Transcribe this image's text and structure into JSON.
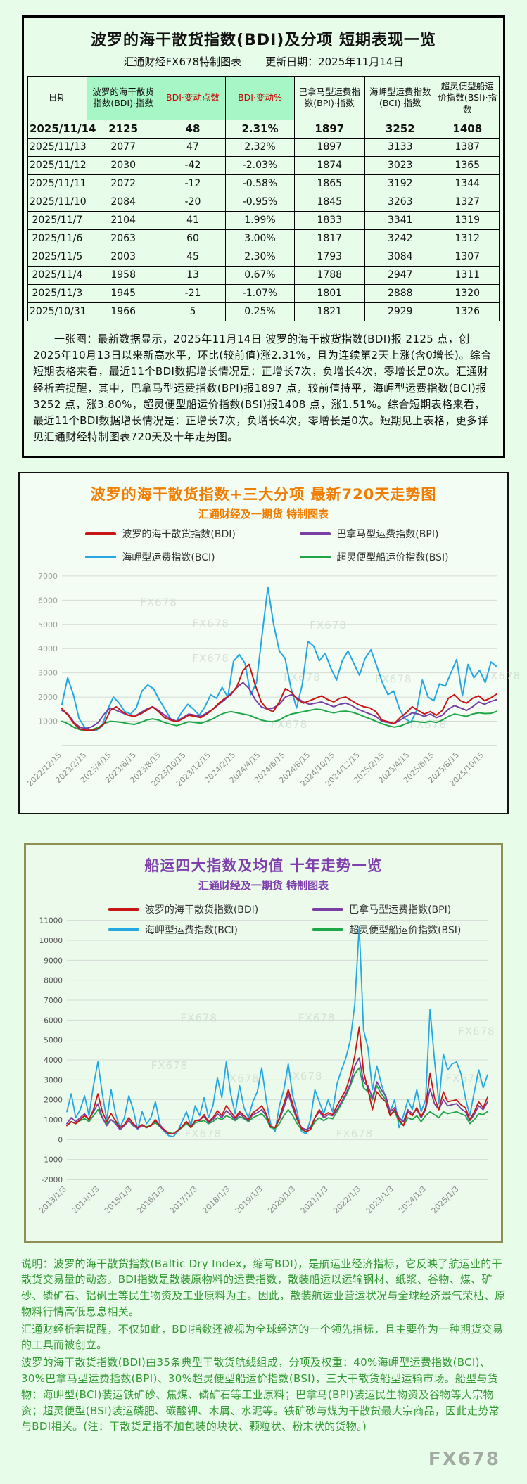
{
  "page": {
    "background": "#e7fce9",
    "footer_logo": "FX678"
  },
  "top_panel": {
    "title": "波罗的海干散货指数(BDI)及分项 短期表现一览",
    "source": "汇通财经FX678特制图表",
    "update_date": "更新日期：2025年11月14日",
    "summary": "一张图：最新数据显示，2025年11月14日 波罗的海干散货指数(BDI)报 2125 点，创2025年10月13日以来新高水平，环比(较前值)涨2.31%，且为连续第2天上涨(含0增长)。综合短期表格来看，最近11个BDI数据增长情况是：正增长7次，负增长4次，零增长是0次。汇通财经析若提醒，其中，巴拿马型运费指数(BPI)报1897 点，较前值持平，海岬型运费指数(BCI)报3252 点，涨3.80%，超灵便型船运价指数(BSI)报1408 点，涨1.51%。综合短期表格来看，最近11个BDI数据增长情况是：正增长7次，负增长4次，零增长是0次。短期见上表格，更多详见汇通财经特制图表720天及十年走势图。"
  },
  "description": {
    "paragraphs": [
      "说明：波罗的海干散货指数(Baltic Dry Index，缩写BDI)，是航运业经济指标，它反映了航运业的干散货交易量的动态。BDI指数是散装原物料的运费指数，散装船运以运输钢材、纸浆、谷物、煤、矿砂、磷矿石、铝矾土等民生物资及工业原料为主。因此，散装航运业营运状况与全球经济景气荣枯、原物料行情高低息息相关。",
      "汇通财经析若提醒，不仅如此，BDI指数还被视为全球经济的一个领先指标，且主要作为一种期货交易的工具而被创立。",
      "波罗的海干散货指数(BDI)由35条典型干散货航线组成，分项及权重：40%海岬型运费指数(BCI)、30%巴拿马型运费指数(BPI)、30%超灵便型船运价指数(BSI)，三大干散货船型运输市场。船型与货物：海岬型(BCI)装运铁矿砂、焦煤、磷矿石等工业原料；巴拿马(BPI)装运民生物资及谷物等大宗物资；超灵便型(BSI)装运磷肥、碳酸钾、木屑、水泥等。铁矿砂与煤为干散货最大宗商品，因此走势常与BDI相关。(注：干散货是指不加包装的块状、颗粒状、粉末状的货物。)"
    ]
  },
  "chart_data": [
    {
      "type": "table",
      "title": "波罗的海干散货指数(BDI)及分项 短期表现一览",
      "columns": [
        "日期",
        "波罗的海干散货指数(BDI)·指数",
        "BDI·变动点数",
        "BDI·变动%",
        "巴拿马型运费指数(BPI)·指数",
        "海岬型运费指数(BCI)·指数",
        "超灵便型船运价指数(BSI)·指数"
      ],
      "rows": [
        [
          "2025/11/14",
          "2125",
          "48",
          "2.31%",
          "1897",
          "3252",
          "1408"
        ],
        [
          "2025/11/13",
          "2077",
          "47",
          "2.32%",
          "1897",
          "3133",
          "1387"
        ],
        [
          "2025/11/12",
          "2030",
          "-42",
          "-2.03%",
          "1874",
          "3023",
          "1365"
        ],
        [
          "2025/11/11",
          "2072",
          "-12",
          "-0.58%",
          "1865",
          "3192",
          "1344"
        ],
        [
          "2025/11/10",
          "2084",
          "-20",
          "-0.95%",
          "1845",
          "3263",
          "1327"
        ],
        [
          "2025/11/7",
          "2104",
          "41",
          "1.99%",
          "1833",
          "3341",
          "1319"
        ],
        [
          "2025/11/6",
          "2063",
          "60",
          "3.00%",
          "1817",
          "3242",
          "1312"
        ],
        [
          "2025/11/5",
          "2003",
          "45",
          "2.30%",
          "1793",
          "3084",
          "1307"
        ],
        [
          "2025/11/4",
          "1958",
          "13",
          "0.67%",
          "1788",
          "2947",
          "1311"
        ],
        [
          "2025/11/3",
          "1945",
          "-21",
          "-1.07%",
          "1801",
          "2888",
          "1320"
        ],
        [
          "2025/10/31",
          "1966",
          "5",
          "0.25%",
          "1821",
          "2929",
          "1326"
        ]
      ]
    },
    {
      "type": "line",
      "title": "波罗的海干散货指数+三大分项  最新720天走势图",
      "subtitle": "汇通财经及一期货 特制图表",
      "watermark": "FX678",
      "grid": "horizontal",
      "legend_position": "top",
      "ylim": [
        0,
        7200
      ],
      "yticks": [
        7000,
        6000,
        5000,
        4000,
        3000,
        2000,
        1000
      ],
      "tick_span": 17.5,
      "categories": [
        "2022/12/15",
        "2023/2/15",
        "2023/4/15",
        "2023/6/15",
        "2023/8/15",
        "2023/10/15",
        "2023/12/15",
        "2024/2/15",
        "2024/4/15",
        "2024/6/15",
        "2024/8/15",
        "2024/10/15",
        "2024/12/15",
        "2025/2/15",
        "2025/4/15",
        "2025/6/15",
        "2025/8/15",
        "2025/10/15"
      ],
      "watermarks": [
        [
          0.18,
          0.2
        ],
        [
          0.3,
          0.32
        ],
        [
          0.57,
          0.33
        ],
        [
          0.3,
          0.52
        ],
        [
          0.51,
          0.63
        ],
        [
          0.72,
          0.64
        ],
        [
          0.97,
          0.62
        ],
        [
          0.48,
          0.9
        ],
        [
          0.8,
          0.9
        ]
      ],
      "draw_order": [
        2,
        3,
        1,
        0
      ],
      "series": [
        {
          "name": "波罗的海干散货指数(BDI)",
          "color": "#c81616",
          "values": [
            1520,
            1250,
            900,
            680,
            640,
            620,
            700,
            900,
            1450,
            1600,
            1400,
            1250,
            1200,
            1300,
            1450,
            1600,
            1400,
            1150,
            1050,
            980,
            1100,
            1250,
            1200,
            1150,
            1300,
            1500,
            1750,
            1950,
            2100,
            2450,
            3100,
            3350,
            2500,
            1800,
            1500,
            1400,
            1800,
            2350,
            2200,
            1900,
            1750,
            1850,
            1950,
            2050,
            1900,
            1800,
            1950,
            2000,
            1850,
            1700,
            1600,
            1550,
            1400,
            1050,
            980,
            900,
            1150,
            1350,
            1600,
            1450,
            1300,
            1400,
            1250,
            1450,
            1950,
            2100,
            1850,
            1750,
            1950,
            2050,
            1850,
            1966,
            2125
          ]
        },
        {
          "name": "巴拿马型运费指数(BPI)",
          "color": "#7a3fa5",
          "values": [
            1450,
            1300,
            950,
            750,
            700,
            780,
            950,
            1300,
            1550,
            1450,
            1350,
            1250,
            1200,
            1350,
            1500,
            1600,
            1450,
            1250,
            1100,
            1000,
            1150,
            1300,
            1250,
            1200,
            1350,
            1500,
            1700,
            1900,
            2150,
            2400,
            2600,
            2350,
            1900,
            1600,
            1500,
            1550,
            1700,
            2000,
            2100,
            1950,
            1800,
            1700,
            1750,
            1800,
            1700,
            1600,
            1700,
            1750,
            1650,
            1500,
            1400,
            1300,
            1200,
            1000,
            950,
            900,
            1050,
            1200,
            1350,
            1300,
            1200,
            1300,
            1150,
            1250,
            1500,
            1650,
            1550,
            1450,
            1600,
            1800,
            1700,
            1821,
            1897
          ]
        },
        {
          "name": "海岬型运费指数(BCI)",
          "color": "#25a8e2",
          "values": [
            1700,
            2800,
            2100,
            1100,
            750,
            650,
            620,
            800,
            1500,
            2000,
            1750,
            1400,
            1300,
            1550,
            2250,
            2500,
            2350,
            1900,
            1500,
            1100,
            1000,
            1400,
            1700,
            1500,
            1250,
            1600,
            2100,
            1950,
            2400,
            2000,
            3480,
            3750,
            3400,
            2100,
            2600,
            4600,
            6540,
            5000,
            3900,
            3600,
            2400,
            1550,
            2500,
            4300,
            4100,
            3500,
            3800,
            3200,
            2700,
            3500,
            3900,
            3400,
            2900,
            3600,
            3950,
            3300,
            2600,
            2100,
            2250,
            1500,
            1100,
            960,
            1450,
            2700,
            2000,
            1850,
            2550,
            2450,
            3000,
            3550,
            2050,
            3350,
            2800,
            3100,
            2600,
            3450,
            3252
          ]
        },
        {
          "name": "超灵便型船运价指数(BSI)",
          "color": "#1fa649",
          "values": [
            1000,
            900,
            750,
            650,
            620,
            650,
            750,
            900,
            1000,
            980,
            950,
            900,
            870,
            950,
            1050,
            1100,
            1050,
            950,
            880,
            820,
            900,
            980,
            950,
            920,
            1000,
            1100,
            1250,
            1350,
            1400,
            1350,
            1300,
            1250,
            1150,
            1050,
            1000,
            980,
            1050,
            1200,
            1300,
            1350,
            1400,
            1450,
            1500,
            1480,
            1400,
            1350,
            1400,
            1420,
            1380,
            1300,
            1200,
            1100,
            1000,
            900,
            820,
            760,
            800,
            900,
            1000,
            980,
            950,
            1000,
            950,
            1050,
            1200,
            1300,
            1250,
            1200,
            1300,
            1350,
            1320,
            1326,
            1408
          ]
        }
      ]
    },
    {
      "type": "line",
      "title": "船运四大指数及均值 十年走势一览",
      "subtitle": "汇通财经及一期货 特制图表",
      "watermark": "FX678",
      "grid": "horizontal",
      "legend_position": "top-inside",
      "ylim": [
        -2000,
        11200
      ],
      "yticks": [
        11000,
        10000,
        9000,
        8000,
        7000,
        6000,
        5000,
        4000,
        3000,
        2000,
        1000,
        0,
        -1000,
        -2000
      ],
      "tick_span": 12.87,
      "categories": [
        "2013/1/3",
        "2014/1/3",
        "2015/1/3",
        "2016/1/3",
        "2017/1/3",
        "2018/1/3",
        "2019/1/3",
        "2020/1/3",
        "2021/1/3",
        "2022/1/3",
        "2023/1/3",
        "2024/1/3",
        "2025/1/3"
      ],
      "watermarks": [
        [
          0.27,
          0.4
        ],
        [
          0.55,
          0.4
        ],
        [
          0.2,
          0.58
        ],
        [
          0.37,
          0.63
        ],
        [
          0.52,
          0.62
        ],
        [
          0.93,
          0.45
        ],
        [
          0.9,
          0.63
        ],
        [
          0.64,
          0.84
        ],
        [
          0.28,
          0.84
        ]
      ],
      "draw_order": [
        2,
        3,
        1,
        0
      ],
      "series": [
        {
          "name": "波罗的海干散货指数(BDI)",
          "color": "#c81616",
          "values": [
            700,
            900,
            800,
            1000,
            1200,
            1000,
            1500,
            2300,
            1400,
            900,
            1300,
            950,
            600,
            750,
            1100,
            800,
            600,
            750,
            600,
            700,
            1000,
            700,
            500,
            300,
            290,
            450,
            650,
            900,
            600,
            950,
            960,
            1250,
            900,
            1100,
            1450,
            1200,
            1700,
            1400,
            1100,
            1400,
            1200,
            1000,
            1350,
            1500,
            1700,
            1300,
            650,
            600,
            1100,
            1800,
            2500,
            1800,
            1100,
            550,
            400,
            500,
            1100,
            1500,
            1200,
            1350,
            1250,
            1700,
            2100,
            2500,
            3200,
            4200,
            5650,
            3400,
            2500,
            1500,
            2400,
            2100,
            1900,
            1200,
            1500,
            1000,
            700,
            1400,
            1200,
            1600,
            1150,
            1600,
            3340,
            2100,
            1500,
            2400,
            1900,
            1950,
            2000,
            1750,
            1600,
            1000,
            1400,
            1900,
            1600,
            2125
          ]
        },
        {
          "name": "巴拿马型运费指数(BPI)",
          "color": "#7a3fa5",
          "values": [
            800,
            1100,
            900,
            1100,
            1300,
            1000,
            1400,
            1800,
            1100,
            700,
            1000,
            800,
            500,
            700,
            950,
            700,
            550,
            700,
            600,
            700,
            950,
            650,
            450,
            300,
            290,
            450,
            650,
            900,
            650,
            950,
            1000,
            1150,
            850,
            1000,
            1300,
            1100,
            1450,
            1250,
            1000,
            1300,
            1100,
            950,
            1250,
            1350,
            1500,
            1200,
            650,
            600,
            1000,
            1600,
            2300,
            1600,
            1000,
            600,
            500,
            600,
            1100,
            1400,
            1100,
            1250,
            1200,
            1500,
            1900,
            2300,
            2800,
            3700,
            4100,
            2900,
            2700,
            2100,
            2900,
            2500,
            2200,
            1400,
            1600,
            1100,
            900,
            1500,
            1300,
            1500,
            1100,
            1500,
            2550,
            1800,
            1500,
            2000,
            1700,
            1750,
            1800,
            1550,
            1400,
            950,
            1250,
            1700,
            1500,
            1897
          ]
        },
        {
          "name": "海岬型运费指数(BCI)",
          "color": "#25a8e2",
          "values": [
            1400,
            2300,
            1100,
            1500,
            2200,
            1200,
            2700,
            3900,
            2300,
            1000,
            2500,
            1300,
            600,
            1100,
            2200,
            1500,
            500,
            1400,
            800,
            1100,
            1900,
            800,
            400,
            200,
            150,
            400,
            900,
            1400,
            700,
            1700,
            1200,
            2100,
            1100,
            1700,
            3100,
            2100,
            3900,
            2300,
            1300,
            2700,
            1600,
            1100,
            1900,
            2400,
            3600,
            2000,
            800,
            400,
            1700,
            2500,
            3800,
            2200,
            1400,
            400,
            300,
            1000,
            2500,
            1900,
            1300,
            2000,
            1400,
            2800,
            3500,
            4100,
            5000,
            6800,
            10700,
            5500,
            4600,
            2500,
            3700,
            2800,
            2100,
            1400,
            2000,
            600,
            1200,
            2000,
            1500,
            2500,
            1400,
            2000,
            6540,
            4000,
            1800,
            4300,
            3500,
            3800,
            3900,
            3300,
            2100,
            1200,
            2400,
            3500,
            2600,
            3252
          ]
        },
        {
          "name": "超灵便型船运价指数(BSI)",
          "color": "#1fa649",
          "values": [
            700,
            900,
            800,
            950,
            1050,
            900,
            1200,
            1500,
            1100,
            800,
            1000,
            850,
            600,
            750,
            950,
            750,
            600,
            700,
            650,
            700,
            850,
            650,
            450,
            350,
            300,
            450,
            600,
            800,
            600,
            850,
            900,
            950,
            800,
            900,
            1100,
            1000,
            1200,
            1100,
            950,
            1150,
            1050,
            900,
            1100,
            1200,
            1300,
            1050,
            600,
            550,
            800,
            1200,
            1500,
            1200,
            800,
            500,
            400,
            500,
            900,
            1100,
            950,
            1100,
            1050,
            1400,
            1800,
            2200,
            2700,
            3300,
            3600,
            2600,
            2400,
            2000,
            2700,
            2300,
            2000,
            1300,
            1400,
            900,
            700,
            1100,
            1000,
            1200,
            900,
            1200,
            1400,
            1250,
            1100,
            1400,
            1300,
            1350,
            1400,
            1300,
            1200,
            800,
            1000,
            1300,
            1250,
            1408
          ]
        }
      ]
    }
  ]
}
